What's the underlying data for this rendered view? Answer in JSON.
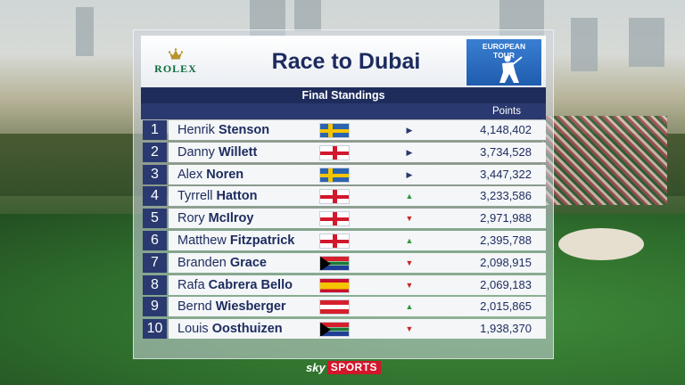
{
  "header": {
    "sponsor": "ROLEX",
    "title": "Race to Dubai",
    "tour_line1": "EUROPEAN",
    "tour_line2": "TOUR",
    "subtitle": "Final Standings",
    "points_header": "Points"
  },
  "colors": {
    "navy": "#1e2c5c",
    "up_arrow": "#2d9a3a",
    "down_arrow": "#c62828",
    "same_arrow": "#2a3a70"
  },
  "standings": [
    {
      "rank": "1",
      "first": "Henrik",
      "last": "Stenson",
      "flag": "sweden-flag",
      "move": "same",
      "points": "4,148,402"
    },
    {
      "rank": "2",
      "first": "Danny",
      "last": "Willett",
      "flag": "england-flag",
      "move": "same",
      "points": "3,734,528"
    },
    {
      "rank": "3",
      "first": "Alex",
      "last": "Noren",
      "flag": "sweden-flag",
      "move": "same",
      "points": "3,447,322"
    },
    {
      "rank": "4",
      "first": "Tyrrell",
      "last": "Hatton",
      "flag": "england-flag",
      "move": "up",
      "points": "3,233,586"
    },
    {
      "rank": "5",
      "first": "Rory",
      "last": "McIlroy",
      "flag": "northern-ireland-flag",
      "move": "down",
      "points": "2,971,988"
    },
    {
      "rank": "6",
      "first": "Matthew",
      "last": "Fitzpatrick",
      "flag": "england-flag",
      "move": "up",
      "points": "2,395,788"
    },
    {
      "rank": "7",
      "first": "Branden",
      "last": "Grace",
      "flag": "south-africa-flag",
      "move": "down",
      "points": "2,098,915"
    },
    {
      "rank": "8",
      "first": "Rafa",
      "last": "Cabrera Bello",
      "flag": "spain-flag",
      "move": "down",
      "points": "2,069,183"
    },
    {
      "rank": "9",
      "first": "Bernd",
      "last": "Wiesberger",
      "flag": "austria-flag",
      "move": "up",
      "points": "2,015,865"
    },
    {
      "rank": "10",
      "first": "Louis",
      "last": "Oosthuizen",
      "flag": "south-africa-flag",
      "move": "down",
      "points": "1,938,370"
    }
  ],
  "broadcaster": {
    "sky": "sky",
    "sports": "SPORTS"
  }
}
